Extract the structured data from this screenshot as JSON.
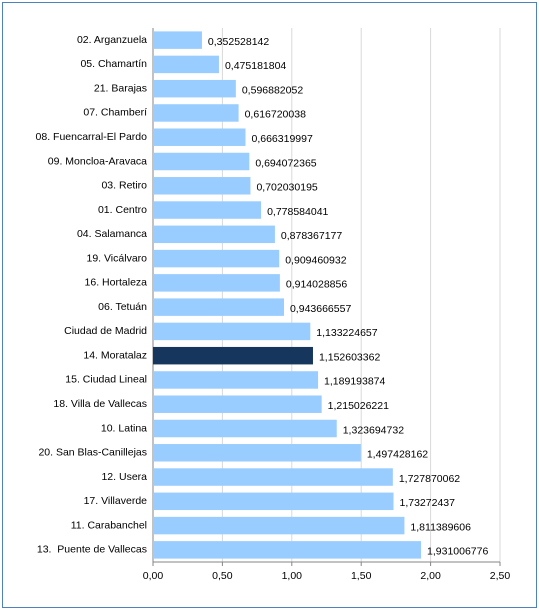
{
  "chart_data": {
    "type": "bar",
    "orientation": "horizontal",
    "categories": [
      "02. Arganzuela",
      "05. Chamartín",
      "21. Barajas",
      "07. Chamberí",
      "08. Fuencarral-El Pardo",
      "09. Moncloa-Aravaca",
      "03. Retiro",
      "01. Centro",
      "04. Salamanca",
      "19. Vicálvaro",
      "16. Hortaleza",
      "06. Tetuán",
      "Ciudad de Madrid",
      "14. Moratalaz",
      "15. Ciudad Lineal",
      "18. Villa de Vallecas",
      "10. Latina",
      "20. San Blas-Canillejas",
      "12. Usera",
      "17. Villaverde",
      "11. Carabanchel",
      "13.  Puente de Vallecas"
    ],
    "values": [
      0.352528142,
      0.475181804,
      0.596882052,
      0.616720038,
      0.666319997,
      0.694072365,
      0.702030195,
      0.778584041,
      0.878367177,
      0.909460932,
      0.914028856,
      0.943666557,
      1.133224657,
      1.152603362,
      1.189193874,
      1.215026221,
      1.323694732,
      1.497428162,
      1.727870062,
      1.73272437,
      1.811389606,
      1.931006776
    ],
    "value_labels": [
      "0,352528142",
      "0,475181804",
      "0,596882052",
      "0,616720038",
      "0,666319997",
      "0,694072365",
      "0,702030195",
      "0,778584041",
      "0,878367177",
      "0,909460932",
      "0,914028856",
      "0,943666557",
      "1,133224657",
      "1,152603362",
      "1,189193874",
      "1,215026221",
      "1,323694732",
      "1,497428162",
      "1,727870062",
      "1,73272437",
      "1,811389606",
      "1,931006776"
    ],
    "color": "#99ccff",
    "highlight": {
      "index": 13,
      "color": "#17365d"
    },
    "xlim": [
      0,
      2.5
    ],
    "xticks": [
      {
        "value": 0,
        "label": "0,00"
      },
      {
        "value": 0.5,
        "label": "0,50"
      },
      {
        "value": 1,
        "label": "1,00"
      },
      {
        "value": 1.5,
        "label": "1,50"
      },
      {
        "value": 2,
        "label": "2,00"
      },
      {
        "value": 2.5,
        "label": "2,50"
      }
    ],
    "grid": true
  }
}
